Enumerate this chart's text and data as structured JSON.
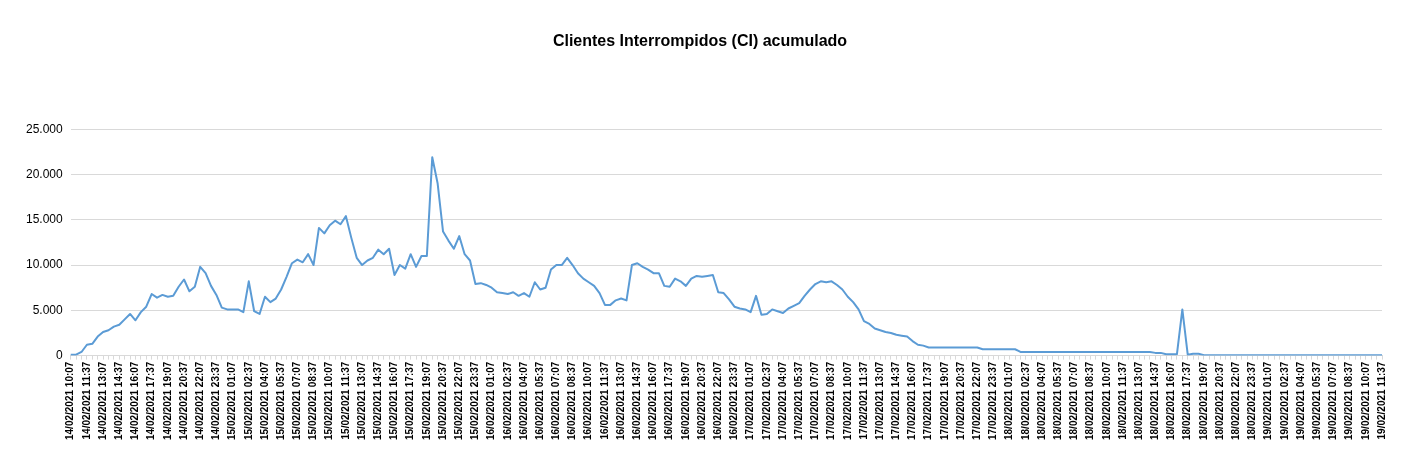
{
  "chart_data": {
    "type": "line",
    "title": "Clientes Interrompidos (CI) acumulado",
    "categories": [
      "14/02/2021 10:07",
      null,
      null,
      "14/02/2021 11:37",
      null,
      null,
      "14/02/2021 13:07",
      null,
      null,
      "14/02/2021 14:37",
      null,
      null,
      "14/02/2021 16:07",
      null,
      null,
      "14/02/2021 17:37",
      null,
      null,
      "14/02/2021 19:07",
      null,
      null,
      "14/02/2021 20:37",
      null,
      null,
      "14/02/2021 22:07",
      null,
      null,
      "14/02/2021 23:37",
      null,
      null,
      "15/02/2021 01:07",
      null,
      null,
      "15/02/2021 02:37",
      null,
      null,
      "15/02/2021 04:07",
      null,
      null,
      "15/02/2021 05:37",
      null,
      null,
      "15/02/2021 07:07",
      null,
      null,
      "15/02/2021 08:37",
      null,
      null,
      "15/02/2021 10:07",
      null,
      null,
      "15/02/2021 11:37",
      null,
      null,
      "15/02/2021 13:07",
      null,
      null,
      "15/02/2021 14:37",
      null,
      null,
      "15/02/2021 16:07",
      null,
      null,
      "15/02/2021 17:37",
      null,
      null,
      "15/02/2021 19:07",
      null,
      null,
      "15/02/2021 20:37",
      null,
      null,
      "15/02/2021 22:07",
      null,
      null,
      "15/02/2021 23:37",
      null,
      null,
      "16/02/2021 01:07",
      null,
      null,
      "16/02/2021 02:37",
      null,
      null,
      "16/02/2021 04:07",
      null,
      null,
      "16/02/2021 05:37",
      null,
      null,
      "16/02/2021 07:07",
      null,
      null,
      "16/02/2021 08:37",
      null,
      null,
      "16/02/2021 10:07",
      null,
      null,
      "16/02/2021 11:37",
      null,
      null,
      "16/02/2021 13:07",
      null,
      null,
      "16/02/2021 14:37",
      null,
      null,
      "16/02/2021 16:07",
      null,
      null,
      "16/02/2021 17:37",
      null,
      null,
      "16/02/2021 19:07",
      null,
      null,
      "16/02/2021 20:37",
      null,
      null,
      "16/02/2021 22:07",
      null,
      null,
      "16/02/2021 23:37",
      null,
      null,
      "17/02/2021 01:07",
      null,
      null,
      "17/02/2021 02:37",
      null,
      null,
      "17/02/2021 04:07",
      null,
      null,
      "17/02/2021 05:37",
      null,
      null,
      "17/02/2021 07:07",
      null,
      null,
      "17/02/2021 08:37",
      null,
      null,
      "17/02/2021 10:07",
      null,
      null,
      "17/02/2021 11:37",
      null,
      null,
      "17/02/2021 13:07",
      null,
      null,
      "17/02/2021 14:37",
      null,
      null,
      "17/02/2021 16:07",
      null,
      null,
      "17/02/2021 17:37",
      null,
      null,
      "17/02/2021 19:07",
      null,
      null,
      "17/02/2021 20:37",
      null,
      null,
      "17/02/2021 22:07",
      null,
      null,
      "17/02/2021 23:37",
      null,
      null,
      "18/02/2021 01:07",
      null,
      null,
      "18/02/2021 02:37",
      null,
      null,
      "18/02/2021 04:07",
      null,
      null,
      "18/02/2021 05:37",
      null,
      null,
      "18/02/2021 07:07",
      null,
      null,
      "18/02/2021 08:37",
      null,
      null,
      "18/02/2021 10:07",
      null,
      null,
      "18/02/2021 11:37",
      null,
      null,
      "18/02/2021 13:07",
      null,
      null,
      "18/02/2021 14:37",
      null,
      null,
      "18/02/2021 16:07",
      null,
      null,
      "18/02/2021 17:37",
      null,
      null,
      "18/02/2021 19:07",
      null,
      null,
      "18/02/2021 20:37",
      null,
      null,
      "18/02/2021 22:07",
      null,
      null,
      "18/02/2021 23:37",
      null,
      null,
      "19/02/2021 01:07",
      null,
      null,
      "19/02/2021 02:37",
      null,
      null,
      "19/02/2021 04:07",
      null,
      null,
      "19/02/2021 05:37",
      null,
      null,
      "19/02/2021 07:07",
      null,
      null,
      "19/02/2021 08:37",
      null,
      null,
      "19/02/2021 10:07",
      null,
      null,
      "19/02/2021 11:37"
    ],
    "series": [
      {
        "color": "#5b9bd5",
        "values": [
          100,
          100,
          400,
          1200,
          1300,
          2100,
          2600,
          2800,
          3200,
          3400,
          4000,
          4600,
          3900,
          4800,
          5400,
          6800,
          6400,
          6700,
          6500,
          6600,
          7600,
          8400,
          7100,
          7600,
          9800,
          9100,
          7700,
          6700,
          5300,
          5100,
          5100,
          5100,
          4800,
          8200,
          4900,
          4600,
          6500,
          5900,
          6300,
          7300,
          8700,
          10200,
          10600,
          10300,
          11200,
          10000,
          14100,
          13500,
          14400,
          14900,
          14500,
          15400,
          13000,
          10800,
          10000,
          10500,
          10800,
          11700,
          11200,
          11800,
          8900,
          10000,
          9600,
          11200,
          9800,
          11000,
          11000,
          21900,
          19000,
          13700,
          12700,
          11800,
          13200,
          11200,
          10500,
          7900,
          8000,
          7800,
          7500,
          7000,
          6900,
          6800,
          7000,
          6600,
          6900,
          6500,
          8100,
          7300,
          7500,
          9500,
          10000,
          10000,
          10800,
          10000,
          9100,
          8500,
          8100,
          7700,
          6900,
          5600,
          5600,
          6100,
          6300,
          6100,
          10000,
          10200,
          9800,
          9500,
          9100,
          9100,
          7700,
          7600,
          8500,
          8200,
          7700,
          8500,
          8800,
          8700,
          8800,
          8900,
          7000,
          6900,
          6200,
          5400,
          5200,
          5100,
          4800,
          6600,
          4500,
          4600,
          5100,
          4900,
          4700,
          5200,
          5500,
          5800,
          6600,
          7300,
          7900,
          8200,
          8100,
          8200,
          7800,
          7300,
          6500,
          5900,
          5100,
          3800,
          3500,
          3000,
          2800,
          2600,
          2500,
          2300,
          2200,
          2100,
          1600,
          1200,
          1100,
          900,
          900,
          900,
          900,
          900,
          900,
          900,
          900,
          900,
          900,
          700,
          700,
          700,
          700,
          700,
          700,
          700,
          400,
          400,
          400,
          400,
          400,
          400,
          400,
          400,
          400,
          400,
          400,
          400,
          400,
          400,
          400,
          400,
          400,
          400,
          400,
          400,
          400,
          400,
          400,
          400,
          400,
          300,
          300,
          150,
          150,
          150,
          5100,
          100,
          200,
          200,
          50,
          50,
          50,
          50,
          50,
          50,
          50,
          50,
          50,
          50,
          50,
          50,
          50,
          50,
          50,
          50,
          50,
          50,
          50,
          50,
          50,
          50,
          50,
          50,
          50,
          50,
          50,
          50,
          50,
          50,
          50,
          50,
          50,
          50
        ]
      }
    ],
    "ylim": [
      0,
      25000
    ],
    "yticks": [
      {
        "value": 0,
        "label": "0"
      },
      {
        "value": 5000,
        "label": "5.000"
      },
      {
        "value": 10000,
        "label": "10.000"
      },
      {
        "value": 15000,
        "label": "15.000"
      },
      {
        "value": 20000,
        "label": "20.000"
      },
      {
        "value": 25000,
        "label": "25.000"
      }
    ],
    "grid": "y",
    "legend": false,
    "marker": "none",
    "line_style": "solid"
  }
}
